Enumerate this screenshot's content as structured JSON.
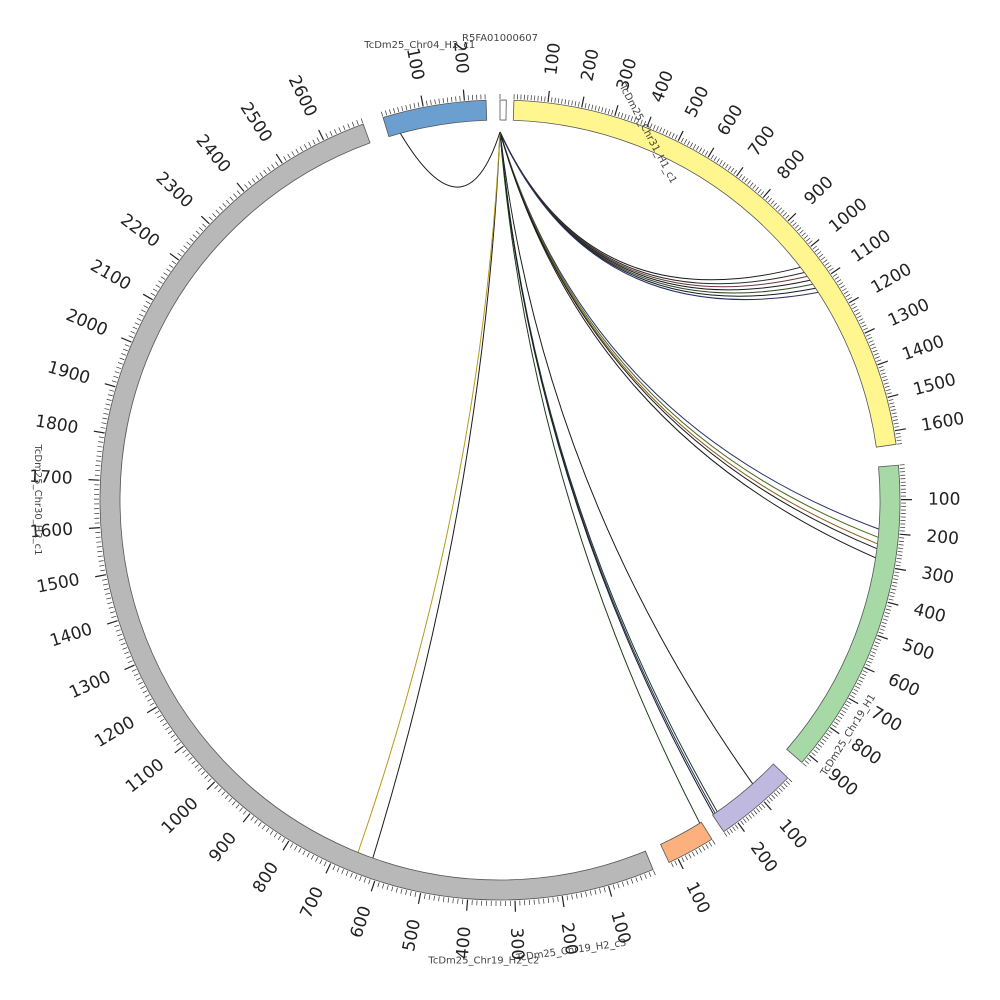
{
  "chart_data": {
    "type": "chord",
    "segments": [
      {
        "name": "R5FA01000607",
        "length": 8,
        "color": "#ffffff",
        "tick_labels": []
      },
      {
        "name": "TcDm25_Chr31_H1_c1",
        "length": 1640,
        "color": "#fff68f",
        "tick_labels": [
          "100",
          "200",
          "300",
          "400",
          "500",
          "600",
          "700",
          "800",
          "900",
          "1000",
          "1100",
          "1200",
          "1300",
          "1400",
          "1500",
          "1600"
        ]
      },
      {
        "name": "TcDm25_Chr19_H1",
        "length": 930,
        "color": "#a6d9a6",
        "tick_labels": [
          "100",
          "200",
          "300",
          "400",
          "500",
          "600",
          "700",
          "800",
          "900"
        ]
      },
      {
        "name": "TcDm25_Chr19_H2_c3",
        "length": 250,
        "color": "#bfb9e0",
        "tick_labels": [
          "100",
          "200"
        ]
      },
      {
        "name": "TcDm25_Chr19_H2_c2",
        "length": 125,
        "color": "#fbb07e",
        "tick_labels": [
          "100"
        ]
      },
      {
        "name": "TcDm25_Chr30_H2_c1",
        "length": 2690,
        "color": "#b8b8b8",
        "tick_labels": [
          "100",
          "200",
          "300",
          "400",
          "500",
          "600",
          "700",
          "800",
          "900",
          "1000",
          "1100",
          "1200",
          "1300",
          "1400",
          "1500",
          "1600",
          "1700",
          "1800",
          "1900",
          "2000",
          "2100",
          "2200",
          "2300",
          "2400",
          "2500",
          "2600"
        ]
      },
      {
        "name": "TcDm25_Chr04_H2_c1",
        "length": 252,
        "color": "#6b9fcf",
        "tick_labels": [
          "100",
          "200"
        ]
      }
    ],
    "links": [
      {
        "target": "TcDm25_Chr31_H1_c1",
        "pos": 1030,
        "color": "#1a1a1a"
      },
      {
        "target": "TcDm25_Chr31_H1_c1",
        "pos": 1050,
        "color": "#2b2b2b"
      },
      {
        "target": "TcDm25_Chr31_H1_c1",
        "pos": 1065,
        "color": "#6b3a3a"
      },
      {
        "target": "TcDm25_Chr31_H1_c1",
        "pos": 1080,
        "color": "#1a1a1a"
      },
      {
        "target": "TcDm25_Chr31_H1_c1",
        "pos": 1095,
        "color": "#2a4a2a"
      },
      {
        "target": "TcDm25_Chr31_H1_c1",
        "pos": 1110,
        "color": "#1a1a1a"
      },
      {
        "target": "TcDm25_Chr31_H1_c1",
        "pos": 1125,
        "color": "#27306b"
      },
      {
        "target": "TcDm25_Chr19_H1",
        "pos": 190,
        "color": "#27306b"
      },
      {
        "target": "TcDm25_Chr19_H1",
        "pos": 215,
        "color": "#4a6b1a"
      },
      {
        "target": "TcDm25_Chr19_H1",
        "pos": 235,
        "color": "#8a5a1a"
      },
      {
        "target": "TcDm25_Chr19_H1",
        "pos": 250,
        "color": "#1a1a1a"
      },
      {
        "target": "TcDm25_Chr19_H1",
        "pos": 278,
        "color": "#1a1a1a"
      },
      {
        "target": "TcDm25_Chr19_H2_c3",
        "pos": 90,
        "color": "#1a1a1a"
      },
      {
        "target": "TcDm25_Chr19_H2_c3",
        "pos": 232,
        "color": "#1a3a1a"
      },
      {
        "target": "TcDm25_Chr19_H2_c3",
        "pos": 240,
        "color": "#27306b"
      },
      {
        "target": "TcDm25_Chr19_H2_c3",
        "pos": 246,
        "color": "#1a1a1a"
      },
      {
        "target": "TcDm25_Chr19_H2_c2",
        "pos": 5,
        "color": "#1a3a1a"
      },
      {
        "target": "TcDm25_Chr30_H2_c1",
        "pos": 620,
        "color": "#1a1a1a"
      },
      {
        "target": "TcDm25_Chr30_H2_c1",
        "pos": 655,
        "color": "#b89a1a"
      },
      {
        "target": "TcDm25_Chr04_H2_c1",
        "pos": 30,
        "color": "#1a1a1a"
      }
    ]
  }
}
